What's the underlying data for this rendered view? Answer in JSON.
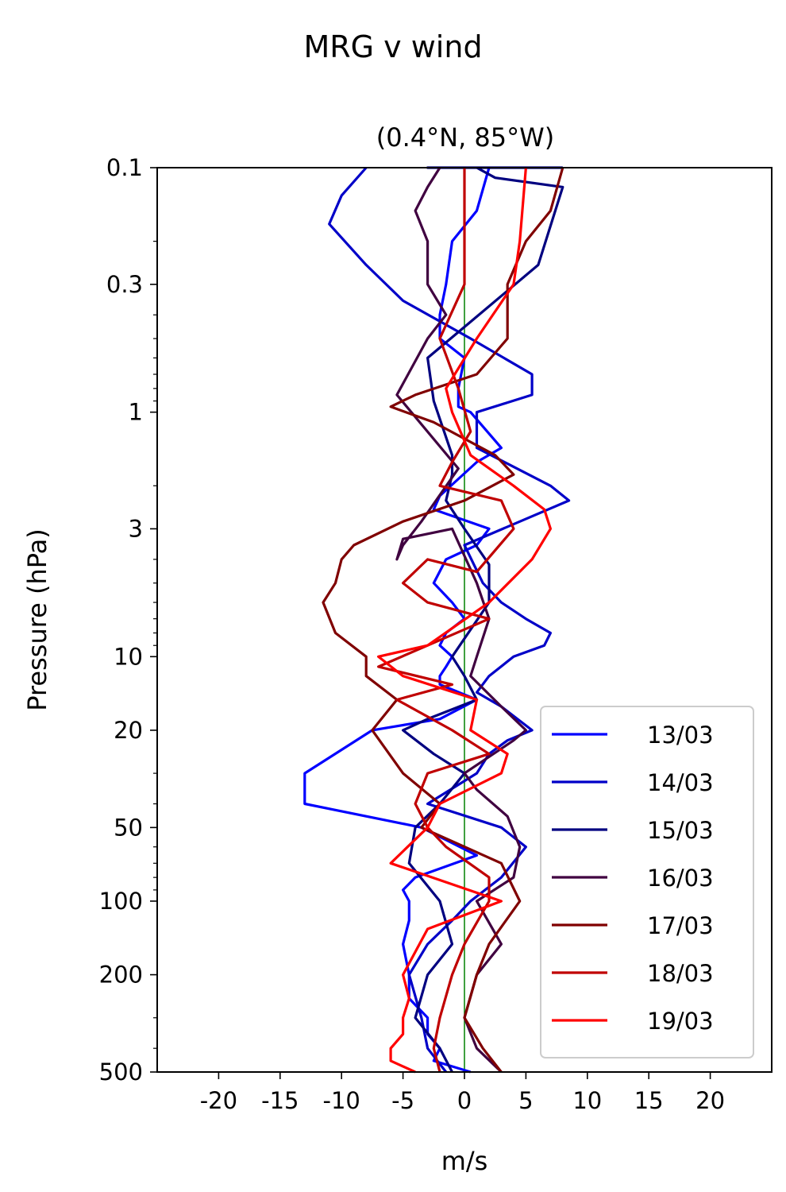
{
  "chart_data": {
    "type": "line",
    "title": "MRG v wind",
    "subtitle": "(0.4°N, 85°W)",
    "xlabel": "m/s",
    "ylabel": "Pressure (hPa)",
    "xlim": [
      -25,
      25
    ],
    "ylim": [
      500,
      0.1
    ],
    "yscale": "log",
    "x_ticks": [
      -20,
      -15,
      -10,
      -5,
      0,
      5,
      10,
      15,
      20
    ],
    "x_tick_labels": [
      "-20",
      "-15",
      "-10",
      "-5",
      "0",
      "5",
      "10",
      "15",
      "20"
    ],
    "y_ticks": [
      0.1,
      0.3,
      1,
      3,
      10,
      20,
      50,
      100,
      200,
      500
    ],
    "y_tick_labels": [
      "0.1",
      "0.3",
      "1",
      "3",
      "10",
      "20",
      "50",
      "100",
      "200",
      "500"
    ],
    "zero_line_color": "#008000",
    "legend_position": "lower-right",
    "series": [
      {
        "name": "13/03",
        "color": "#0000ff",
        "x": [
          0.5,
          -2.5,
          -2.0,
          -3.0,
          -3.0,
          -4.5,
          -4.5,
          -5.0,
          -4.5,
          -4.5,
          -5.0,
          -4.0,
          1.0,
          -3.5,
          -13.0,
          -13.0,
          -7.5,
          -2.0,
          1.0,
          -2.0,
          -2.0,
          -1.5,
          -1.0,
          -2.0,
          -1.5,
          0.0,
          -1.0,
          -2.5,
          -1.5,
          1.0,
          2.0,
          -2.5,
          -2.0,
          1.0,
          3.0,
          0.5,
          -0.5,
          -0.5,
          0.0,
          -2.0,
          -2.0,
          -1.5,
          -1.0,
          1.0,
          2.0
        ],
        "p": [
          500,
          450,
          400,
          350,
          300,
          250,
          200,
          150,
          120,
          100,
          90,
          80,
          65,
          50,
          40,
          30,
          20,
          18,
          15,
          13,
          12,
          11,
          10,
          9,
          8,
          7,
          6,
          5,
          4,
          3.5,
          3,
          2.5,
          2.2,
          1.6,
          1.4,
          1.0,
          0.95,
          0.8,
          0.6,
          0.5,
          0.4,
          0.3,
          0.2,
          0.15,
          0.1
        ]
      },
      {
        "name": "14/03",
        "color": "#0000c8",
        "x": [
          -1.5,
          -3.0,
          -3.5,
          -4.5,
          -3.0,
          -1.0,
          0.5,
          3.0,
          5.0,
          3.0,
          -3.0,
          1.0,
          2.0,
          3.5,
          5.5,
          3.0,
          1.0,
          2.0,
          4.0,
          6.5,
          7.0,
          5.0,
          3.0,
          1.5,
          0.0,
          8.5,
          7.0,
          1.0,
          1.0,
          5.5,
          5.5,
          0.5,
          -5.0,
          -8.0,
          -11.0,
          -10.0,
          -8.0
        ],
        "p": [
          500,
          400,
          300,
          200,
          150,
          120,
          100,
          80,
          60,
          50,
          40,
          30,
          25,
          22,
          20,
          16,
          14,
          12,
          10,
          9,
          8,
          7,
          6,
          5,
          3.5,
          2.3,
          2.0,
          1.4,
          1.0,
          0.85,
          0.7,
          0.5,
          0.35,
          0.25,
          0.17,
          0.13,
          0.1
        ]
      },
      {
        "name": "15/03",
        "color": "#000080",
        "x": [
          -1.0,
          -2.0,
          -4.0,
          -3.0,
          -1.0,
          -2.0,
          -4.5,
          -4.0,
          -2.0,
          0.0,
          -2.5,
          -5.0,
          -3.0,
          1.0,
          0.0,
          -1.0,
          2.0,
          2.0,
          0.0,
          -1.5,
          -1.0,
          -1.0,
          -2.5,
          -3.0,
          6.0,
          8.0,
          2.5,
          1.0,
          -0.5,
          -2.5,
          -3.0,
          2.0,
          8.0
        ],
        "p": [
          500,
          400,
          300,
          200,
          150,
          100,
          70,
          50,
          40,
          30,
          25,
          20,
          18,
          15,
          12,
          10,
          6,
          4.2,
          3.0,
          2.3,
          1.8,
          1.5,
          0.9,
          0.6,
          0.25,
          0.12,
          0.11,
          0.1,
          0.1,
          0.1,
          0.1,
          0.1,
          0.1
        ]
      },
      {
        "name": "16/03",
        "color": "#400040",
        "x": [
          3.0,
          1.0,
          0.0,
          1.0,
          3.0,
          1.0,
          4.0,
          4.5,
          3.5,
          1.0,
          0.0,
          4.0,
          5.0,
          3.0,
          0.5,
          1.0,
          2.0,
          1.0,
          -1.0,
          -5.0,
          -5.5,
          -5.0,
          -3.5,
          -0.5,
          -5.5,
          -3.0,
          -1.5,
          -3.0,
          -3.0,
          -4.0,
          -3.0,
          -2.0
        ],
        "p": [
          500,
          400,
          300,
          200,
          150,
          100,
          80,
          60,
          45,
          35,
          30,
          22,
          20,
          16,
          12,
          10,
          7,
          5,
          3.0,
          3.3,
          4.0,
          3.5,
          2.8,
          1.7,
          0.85,
          0.5,
          0.4,
          0.3,
          0.2,
          0.15,
          0.12,
          0.1
        ]
      },
      {
        "name": "17/03",
        "color": "#800000",
        "x": [
          3.0,
          1.5,
          0.0,
          1.0,
          2.0,
          4.5,
          3.0,
          -3.5,
          -2.0,
          -5.0,
          -7.5,
          -5.5,
          -8.0,
          -8.0,
          -10.5,
          -11.5,
          -10.5,
          -10.0,
          -9.0,
          -5.0,
          0.0,
          4.0,
          2.5,
          -2.5,
          -6.0,
          -4.0,
          1.0,
          3.5,
          3.5,
          5.0,
          7.0,
          8.0
        ],
        "p": [
          500,
          400,
          300,
          200,
          150,
          100,
          70,
          50,
          40,
          30,
          20,
          15,
          12,
          10,
          8,
          6,
          5,
          4,
          3.5,
          2.8,
          2.3,
          1.8,
          1.5,
          1.1,
          0.95,
          0.85,
          0.7,
          0.5,
          0.3,
          0.2,
          0.15,
          0.1
        ]
      },
      {
        "name": "18/03",
        "color": "#c00000",
        "x": [
          -2.0,
          -2.5,
          -2.0,
          -1.0,
          0.0,
          2.0,
          2.0,
          -1.5,
          -3.0,
          -4.0,
          -3.0,
          2.0,
          -1.0,
          -5.5,
          -1.0,
          -7.0,
          -3.0,
          2.0,
          -3.0,
          -5.0,
          -3.0,
          1.0,
          4.0,
          3.0,
          -2.0,
          -1.0,
          0.5,
          -0.5,
          -2.0,
          0.0,
          0.0
        ],
        "p": [
          500,
          400,
          300,
          200,
          150,
          100,
          80,
          60,
          50,
          40,
          30,
          25,
          20,
          15,
          13,
          11,
          9,
          7,
          6,
          5,
          4,
          4.5,
          3.0,
          2.3,
          2.0,
          1.6,
          1.2,
          0.8,
          0.5,
          0.3,
          0.1
        ]
      },
      {
        "name": "19/03",
        "color": "#ff0000",
        "x": [
          -4.0,
          -6.0,
          -6.0,
          -5.0,
          -5.0,
          -4.5,
          -5.0,
          -3.0,
          3.0,
          -6.0,
          -3.0,
          -2.0,
          3.0,
          3.5,
          0.5,
          1.0,
          -5.0,
          -7.0,
          -3.0,
          2.0,
          5.5,
          7.0,
          6.5,
          4.0,
          0.5,
          -1.0,
          -1.5,
          1.0,
          4.0,
          4.5,
          5.0
        ],
        "p": [
          500,
          450,
          400,
          350,
          300,
          250,
          200,
          130,
          100,
          70,
          50,
          40,
          30,
          25,
          20,
          15,
          12,
          10,
          9,
          6,
          4.0,
          3.0,
          2.5,
          2.0,
          1.5,
          1.0,
          0.8,
          0.5,
          0.3,
          0.2,
          0.1
        ]
      }
    ]
  }
}
